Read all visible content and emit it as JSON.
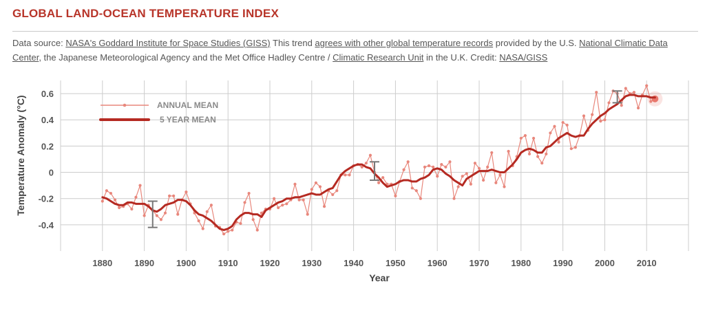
{
  "header": {
    "title": "GLOBAL LAND-OCEAN TEMPERATURE INDEX",
    "source": [
      {
        "text": "Data source: ",
        "link": false
      },
      {
        "text": "NASA's Goddard Institute for Space Studies (GISS)",
        "link": true
      },
      {
        "text": " This trend ",
        "link": false
      },
      {
        "text": "agrees with other global temperature records",
        "link": true
      },
      {
        "text": " provided by the U.S. ",
        "link": false
      },
      {
        "text": "National Climatic Data Center",
        "link": true
      },
      {
        "text": ", the Japanese Meteorological Agency and the Met Office Hadley Centre / ",
        "link": false
      },
      {
        "text": "Climatic Research Unit",
        "link": true
      },
      {
        "text": " in the U.K. Credit: ",
        "link": false
      },
      {
        "text": "NASA/GISS",
        "link": true
      }
    ]
  },
  "colors": {
    "accent": "#b8352a",
    "annual": "#e8877c",
    "five_year": "#b52a22",
    "grid": "#cccccc",
    "error_bar": "#777777",
    "highlight": "#e8776c"
  },
  "chart_data": {
    "type": "line",
    "title": "GLOBAL LAND-OCEAN TEMPERATURE INDEX",
    "xlabel": "Year",
    "ylabel": "Temperature Anomaly (°C)",
    "xlim": [
      1870,
      2020
    ],
    "ylim": [
      -0.6,
      0.7
    ],
    "x_ticks": [
      1880,
      1890,
      1900,
      1910,
      1920,
      1930,
      1940,
      1950,
      1960,
      1970,
      1980,
      1990,
      2000,
      2010
    ],
    "y_ticks": [
      -0.4,
      -0.2,
      0,
      0.2,
      0.4,
      0.6
    ],
    "y_tick_labels": [
      "-0.4",
      "-0.2",
      "0",
      "0.2",
      "0.4",
      "0.6"
    ],
    "legend": [
      "ANNUAL MEAN",
      "5 YEAR MEAN"
    ],
    "legend_position": "top-left",
    "x_start": 1880,
    "series": [
      {
        "name": "ANNUAL MEAN",
        "values": [
          -0.22,
          -0.14,
          -0.16,
          -0.21,
          -0.27,
          -0.26,
          -0.24,
          -0.28,
          -0.19,
          -0.1,
          -0.33,
          -0.25,
          -0.29,
          -0.33,
          -0.36,
          -0.31,
          -0.18,
          -0.18,
          -0.32,
          -0.21,
          -0.15,
          -0.24,
          -0.31,
          -0.37,
          -0.43,
          -0.3,
          -0.25,
          -0.41,
          -0.42,
          -0.47,
          -0.45,
          -0.44,
          -0.38,
          -0.39,
          -0.23,
          -0.16,
          -0.36,
          -0.44,
          -0.31,
          -0.28,
          -0.28,
          -0.2,
          -0.27,
          -0.25,
          -0.24,
          -0.21,
          -0.09,
          -0.21,
          -0.21,
          -0.32,
          -0.13,
          -0.08,
          -0.11,
          -0.26,
          -0.14,
          -0.17,
          -0.14,
          -0.02,
          -0.02,
          -0.02,
          0.05,
          0.06,
          0.04,
          0.07,
          0.13,
          0.0,
          -0.08,
          -0.04,
          -0.09,
          -0.09,
          -0.18,
          -0.07,
          0.02,
          0.08,
          -0.12,
          -0.14,
          -0.2,
          0.04,
          0.05,
          0.04,
          -0.03,
          0.06,
          0.04,
          0.08,
          -0.2,
          -0.11,
          -0.03,
          -0.01,
          -0.09,
          0.07,
          0.03,
          -0.06,
          0.04,
          0.15,
          -0.08,
          -0.02,
          -0.11,
          0.16,
          0.05,
          0.12,
          0.26,
          0.28,
          0.14,
          0.26,
          0.12,
          0.07,
          0.14,
          0.3,
          0.35,
          0.23,
          0.38,
          0.36,
          0.18,
          0.19,
          0.28,
          0.43,
          0.32,
          0.44,
          0.61,
          0.39,
          0.4,
          0.53,
          0.62,
          0.6,
          0.51,
          0.64,
          0.6,
          0.61,
          0.49,
          0.59,
          0.66,
          0.54,
          0.56
        ],
        "highlight": {
          "year": 2012,
          "value": 0.56
        }
      },
      {
        "name": "5 YEAR MEAN",
        "values": [
          -0.19,
          -0.2,
          -0.22,
          -0.24,
          -0.25,
          -0.25,
          -0.23,
          -0.23,
          -0.24,
          -0.24,
          -0.24,
          -0.26,
          -0.29,
          -0.3,
          -0.28,
          -0.25,
          -0.24,
          -0.23,
          -0.21,
          -0.21,
          -0.22,
          -0.25,
          -0.29,
          -0.32,
          -0.33,
          -0.35,
          -0.37,
          -0.4,
          -0.43,
          -0.44,
          -0.43,
          -0.41,
          -0.36,
          -0.33,
          -0.31,
          -0.31,
          -0.32,
          -0.32,
          -0.34,
          -0.29,
          -0.27,
          -0.25,
          -0.23,
          -0.22,
          -0.2,
          -0.2,
          -0.19,
          -0.19,
          -0.18,
          -0.17,
          -0.16,
          -0.17,
          -0.17,
          -0.15,
          -0.13,
          -0.12,
          -0.07,
          -0.02,
          0.01,
          0.03,
          0.05,
          0.06,
          0.06,
          0.04,
          0.03,
          -0.01,
          -0.04,
          -0.08,
          -0.11,
          -0.1,
          -0.09,
          -0.07,
          -0.06,
          -0.06,
          -0.07,
          -0.07,
          -0.05,
          -0.04,
          -0.02,
          0.02,
          0.03,
          0.02,
          -0.01,
          -0.03,
          -0.06,
          -0.08,
          -0.1,
          -0.05,
          -0.03,
          -0.01,
          0.01,
          0.01,
          0.01,
          0.02,
          0.01,
          0.0,
          0.0,
          0.03,
          0.06,
          0.1,
          0.15,
          0.17,
          0.18,
          0.17,
          0.15,
          0.15,
          0.19,
          0.2,
          0.23,
          0.26,
          0.28,
          0.3,
          0.28,
          0.27,
          0.28,
          0.28,
          0.33,
          0.37,
          0.4,
          0.43,
          0.45,
          0.48,
          0.5,
          0.52,
          0.55,
          0.58,
          0.59,
          0.59,
          0.58,
          0.58,
          0.58,
          0.57,
          0.57
        ]
      }
    ],
    "error_bars": [
      {
        "year": 1892,
        "low": -0.42,
        "high": -0.22
      },
      {
        "year": 1945,
        "low": -0.06,
        "high": 0.08
      },
      {
        "year": 2003,
        "low": 0.53,
        "high": 0.62
      }
    ]
  }
}
